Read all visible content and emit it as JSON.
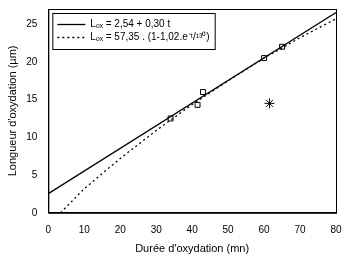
{
  "chart_data": {
    "type": "scatter",
    "xlabel": "Durée d'oxydation (mn)",
    "ylabel": "Longueur d'oxydation (µm)",
    "xlim": [
      0,
      80
    ],
    "xticks": [
      0,
      10,
      20,
      30,
      40,
      50,
      60,
      70,
      80
    ],
    "ylim": [
      0,
      27
    ],
    "yticks": [
      0,
      5,
      10,
      15,
      20,
      25
    ],
    "grid": false,
    "legend": "top-left",
    "series": [
      {
        "name": "Lₒₓ = 2,54 + 0,30 t",
        "type": "line",
        "line_style": "solid",
        "color": "#000000",
        "x": [
          0,
          80
        ],
        "values": [
          2.54,
          26.54
        ]
      },
      {
        "name": "Lₒₓ = 57,35 . (1-1,02.e⁻ᵗ/¹³⁰)",
        "type": "line",
        "line_style": "dotted",
        "color": "#000000",
        "x": [
          3.4,
          10,
          20,
          30,
          40,
          50,
          60,
          70,
          80
        ],
        "values": [
          0,
          3.2,
          7.2,
          10.9,
          14.35,
          17.5,
          20.5,
          23.2,
          25.7
        ]
      },
      {
        "type": "scatter",
        "marker": "square",
        "color": "#000000",
        "x": [
          34,
          41.5,
          43,
          60,
          65
        ],
        "values": [
          12.5,
          14.3,
          16,
          20.5,
          22
        ]
      },
      {
        "type": "scatter",
        "marker": "star",
        "color": "#000000",
        "x": [
          61.5
        ],
        "values": [
          14.5
        ]
      }
    ]
  }
}
